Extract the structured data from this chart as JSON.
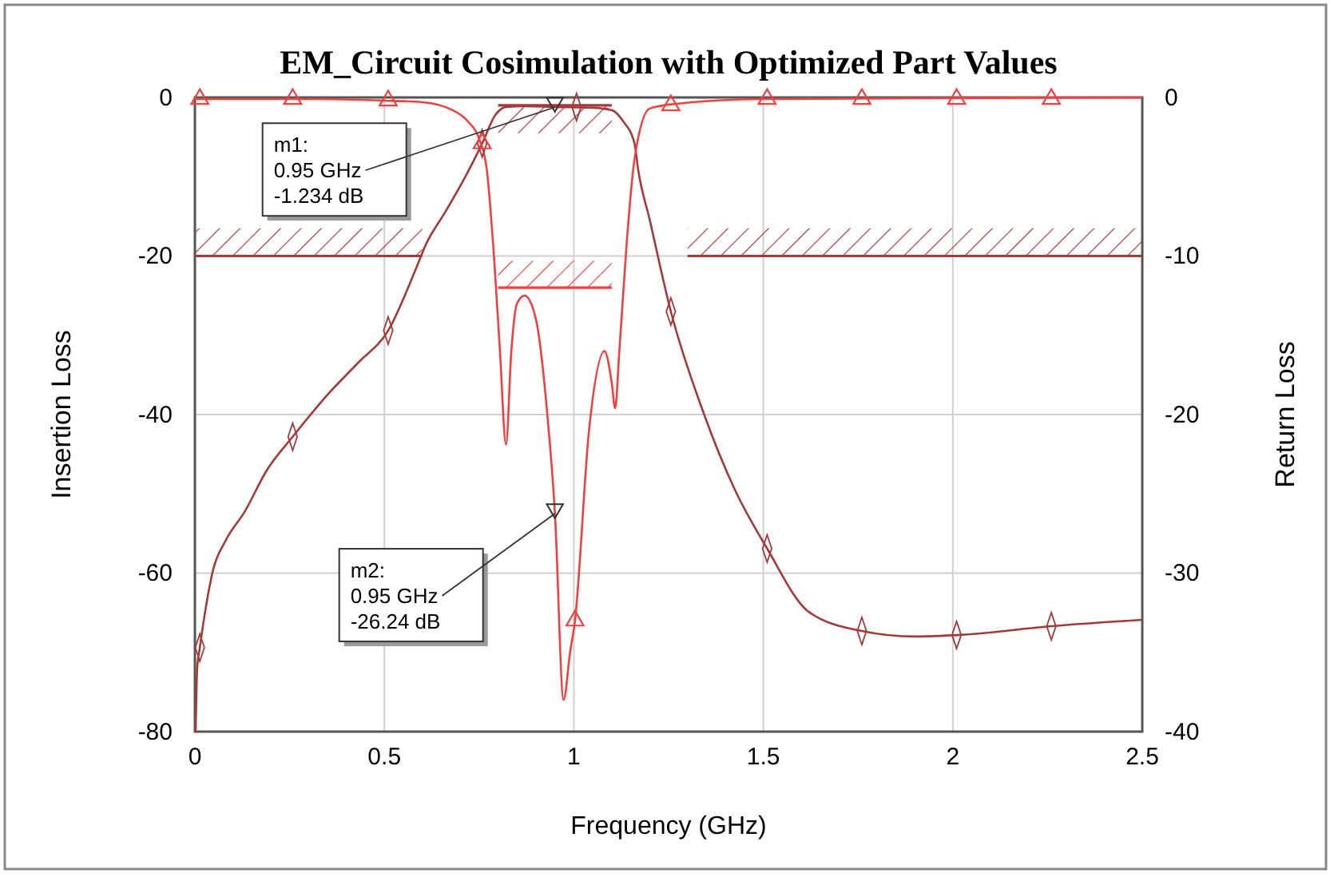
{
  "chart_data": {
    "type": "line",
    "title": "EM_Circuit Cosimulation with Optimized Part Values",
    "xlabel": "Frequency (GHz)",
    "ylabel": "Insertion Loss",
    "y2label": "Return Loss",
    "xlim": [
      0,
      2.5
    ],
    "xticks": [
      0,
      0.5,
      1,
      1.5,
      2,
      2.5
    ],
    "ylim": [
      -80,
      0
    ],
    "yticks": [
      -80,
      -60,
      -40,
      -20,
      0
    ],
    "y2lim": [
      -40,
      0
    ],
    "y2ticks": [
      -40,
      -30,
      -20,
      -10,
      0
    ],
    "grid": true,
    "series": [
      {
        "color": "#a33a3a",
        "x": [
          0.002,
          0.006,
          0.013,
          0.03,
          0.048,
          0.08,
          0.132,
          0.19,
          0.258,
          0.35,
          0.43,
          0.51,
          0.58,
          0.61,
          0.66,
          0.708,
          0.758,
          0.793,
          0.821,
          0.87,
          0.95,
          1.05,
          1.1,
          1.13,
          1.16,
          1.17,
          1.2,
          1.256,
          1.34,
          1.425,
          1.51,
          1.62,
          1.76,
          1.9,
          2.02,
          2.26,
          2.5
        ],
        "values": [
          -80,
          -72,
          -69.4,
          -64,
          -59.6,
          -56,
          -52.2,
          -47,
          -42.8,
          -37.5,
          -33.5,
          -29.4,
          -22,
          -18.5,
          -14.5,
          -10.5,
          -5.8,
          -2.2,
          -1.2,
          -1.1,
          -1.2,
          -1.3,
          -1.6,
          -3,
          -5.8,
          -9.2,
          -15.4,
          -27,
          -39.5,
          -49.5,
          -56.9,
          -64.9,
          -67.3,
          -68,
          -67.8,
          -66.7,
          -65.9
        ]
      },
      {
        "axis": "y2",
        "color": "#f04040",
        "x": [
          0,
          0.3,
          0.5,
          0.6,
          0.68,
          0.72,
          0.75,
          0.77,
          0.79,
          0.805,
          0.821,
          0.835,
          0.85,
          0.87,
          0.9,
          0.93,
          0.95,
          0.973,
          0.99,
          1.003,
          1.04,
          1.081,
          1.1,
          1.109,
          1.12,
          1.14,
          1.16,
          1.2,
          1.27,
          1.5,
          2.5
        ],
        "values": [
          -0.1,
          -0.1,
          -0.2,
          -0.3,
          -0.8,
          -1.5,
          -2.6,
          -4.5,
          -10.3,
          -16,
          -21.9,
          -16,
          -13,
          -12.5,
          -14,
          -20,
          -26.2,
          -38,
          -35,
          -33,
          -21,
          -16,
          -18,
          -19.6,
          -16,
          -9,
          -3.9,
          -0.7,
          -0.4,
          -0.1,
          0
        ]
      },
      {
        "type": "scatter",
        "marker": "diamond",
        "color": "#a33a3a",
        "x": [
          0.013,
          0.258,
          0.51,
          0.758,
          1.007,
          1.256,
          1.51,
          1.76,
          2.01,
          2.26
        ],
        "values": [
          -69.4,
          -42.8,
          -29.4,
          -5.8,
          -1.2,
          -27,
          -56.9,
          -67.3,
          -67.8,
          -66.7
        ]
      },
      {
        "type": "scatter",
        "marker": "triangle",
        "axis": "y2",
        "color": "#f04040",
        "x": [
          0.013,
          0.258,
          0.51,
          0.758,
          1.003,
          1.256,
          1.51,
          1.76,
          2.01,
          2.26
        ],
        "values": [
          -0.1,
          -0.1,
          -0.2,
          -2.9,
          -33,
          -0.5,
          -0.1,
          -0.1,
          -0.1,
          -0.1
        ]
      },
      {
        "type": "line",
        "color": "#a33a3a",
        "x": [
          0,
          0.6
        ],
        "values": [
          -20,
          -20
        ],
        "lower": [
          -20,
          -20
        ],
        "upper": [
          -16.5,
          -16.5
        ]
      },
      {
        "type": "line",
        "color": "#a33a3a",
        "x": [
          1.3,
          2.5
        ],
        "values": [
          -20,
          -20
        ],
        "lower": [
          -20,
          -20
        ],
        "upper": [
          -16.5,
          -16.5
        ]
      },
      {
        "type": "line",
        "color": "#a33a3a",
        "x": [
          0.8,
          1.1
        ],
        "values": [
          -1,
          -1
        ],
        "lower": [
          -4.5,
          -4.5
        ],
        "upper": [
          -1,
          -1
        ]
      },
      {
        "type": "line",
        "axis": "y2",
        "color": "#f04040",
        "x": [
          0.8,
          1.1
        ],
        "values": [
          -12,
          -12
        ],
        "lower": [
          -12,
          -12
        ],
        "upper": [
          -10.3,
          -10.3
        ]
      }
    ],
    "annotations": [
      {
        "text": "m1:\n0.95 GHz\n-1.234 dB",
        "x": 0.95,
        "y": -1.234
      },
      {
        "text": "m2:\n0.95 GHz\n-26.24 dB",
        "x": 0.95,
        "y": -52.5
      }
    ]
  }
}
